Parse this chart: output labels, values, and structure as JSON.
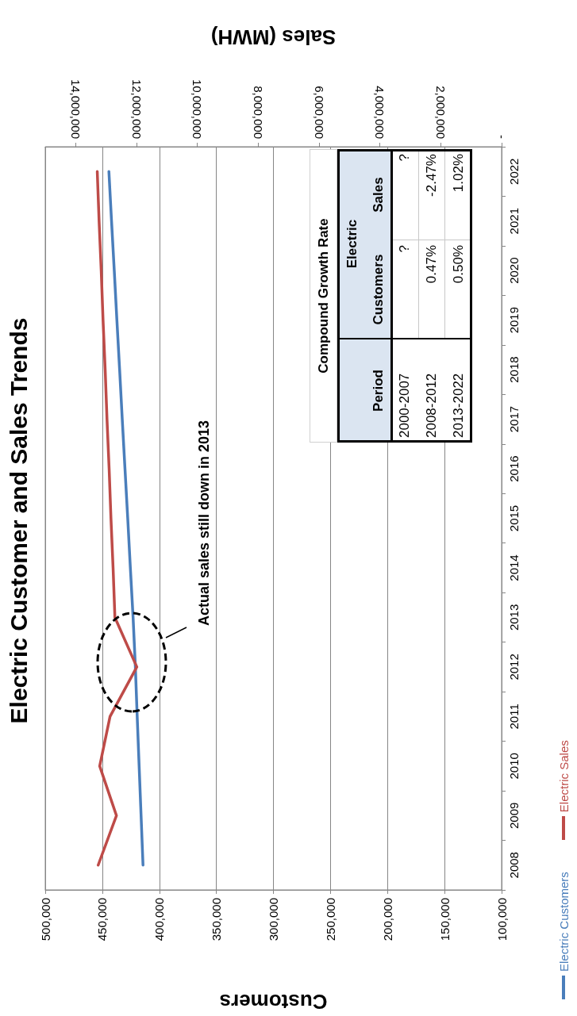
{
  "chart_data": {
    "type": "line",
    "orientation": "horizontal",
    "title": "Electric Customer and Sales Trends",
    "xlabel": "Customers",
    "x2label": "Sales (MWH)",
    "categories": [
      "2022",
      "2021",
      "2020",
      "2019",
      "2018",
      "2017",
      "2016",
      "2015",
      "2014",
      "2013",
      "2012",
      "2011",
      "2010",
      "2009",
      "2008"
    ],
    "series": [
      {
        "name": "Electric Customers",
        "color": "#4a7ebb",
        "values": [
          444200,
          441900,
          439500,
          437200,
          434800,
          432500,
          430100,
          427700,
          425400,
          423000,
          421000,
          419400,
          417700,
          416000,
          414300
        ]
      },
      {
        "name": "Electric Sales",
        "color": "#be4b48",
        "axis": "x2",
        "values": [
          13290000,
          13230000,
          13160000,
          13100000,
          13030000,
          12970000,
          12900000,
          12840000,
          12770000,
          12710000,
          11990000,
          12870000,
          13210000,
          12660000,
          13260000
        ]
      }
    ],
    "xlim": [
      500000,
      100000
    ],
    "xticks": [
      {
        "value": 500000,
        "label": "500,000"
      },
      {
        "value": 450000,
        "label": "450,000"
      },
      {
        "value": 400000,
        "label": "400,000"
      },
      {
        "value": 350000,
        "label": "350,000"
      },
      {
        "value": 300000,
        "label": "300,000"
      },
      {
        "value": 250000,
        "label": "250,000"
      },
      {
        "value": 200000,
        "label": "200,000"
      },
      {
        "value": 150000,
        "label": "150,000"
      },
      {
        "value": 100000,
        "label": "100,000"
      }
    ],
    "x2lim": [
      15000000,
      0
    ],
    "x2ticks": [
      {
        "value": 14000000,
        "label": "14,000,000"
      },
      {
        "value": 12000000,
        "label": "12,000,000"
      },
      {
        "value": 10000000,
        "label": "10,000,000"
      },
      {
        "value": 8000000,
        "label": "8,000,000"
      },
      {
        "value": 6000000,
        "label": "6,000,000"
      },
      {
        "value": 4000000,
        "label": "4,000,000"
      },
      {
        "value": 2000000,
        "label": "2,000,000"
      },
      {
        "value": 0,
        "label": "-"
      }
    ],
    "grid": "x",
    "legend": "right",
    "marker": "none",
    "line_style": "solid",
    "annotations": [
      "Actual sales still down in 2013",
      "Compound Growth Rate",
      "Period",
      "Electric",
      "Customers",
      "Sales",
      "2000-2007",
      "?",
      "?",
      "2008-2012",
      "0.47%",
      "-2.47%",
      "2013-2022",
      "0.50%",
      "1.02%"
    ]
  }
}
